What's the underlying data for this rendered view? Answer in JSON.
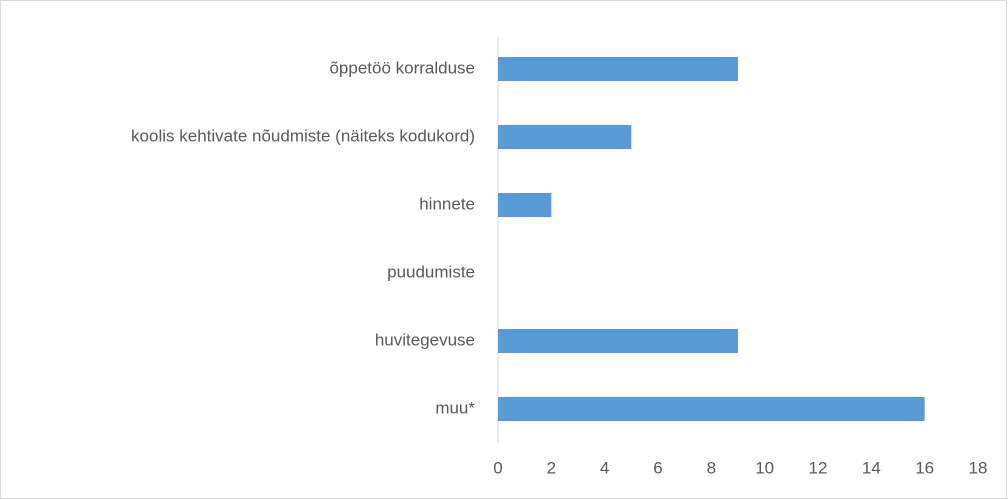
{
  "chart_data": {
    "type": "bar",
    "orientation": "horizontal",
    "categories": [
      "õppetöö korralduse",
      "koolis kehtivate nõudmiste (näiteks kodukord)",
      "hinnete",
      "puudumiste",
      "huvitegevuse",
      "muu*"
    ],
    "values": [
      9,
      5,
      2,
      0,
      9,
      16
    ],
    "color": "#5b9bd5",
    "xlim": [
      0,
      18
    ],
    "xticks": [
      0,
      2,
      4,
      6,
      8,
      10,
      12,
      14,
      16,
      18
    ],
    "grid": false
  }
}
